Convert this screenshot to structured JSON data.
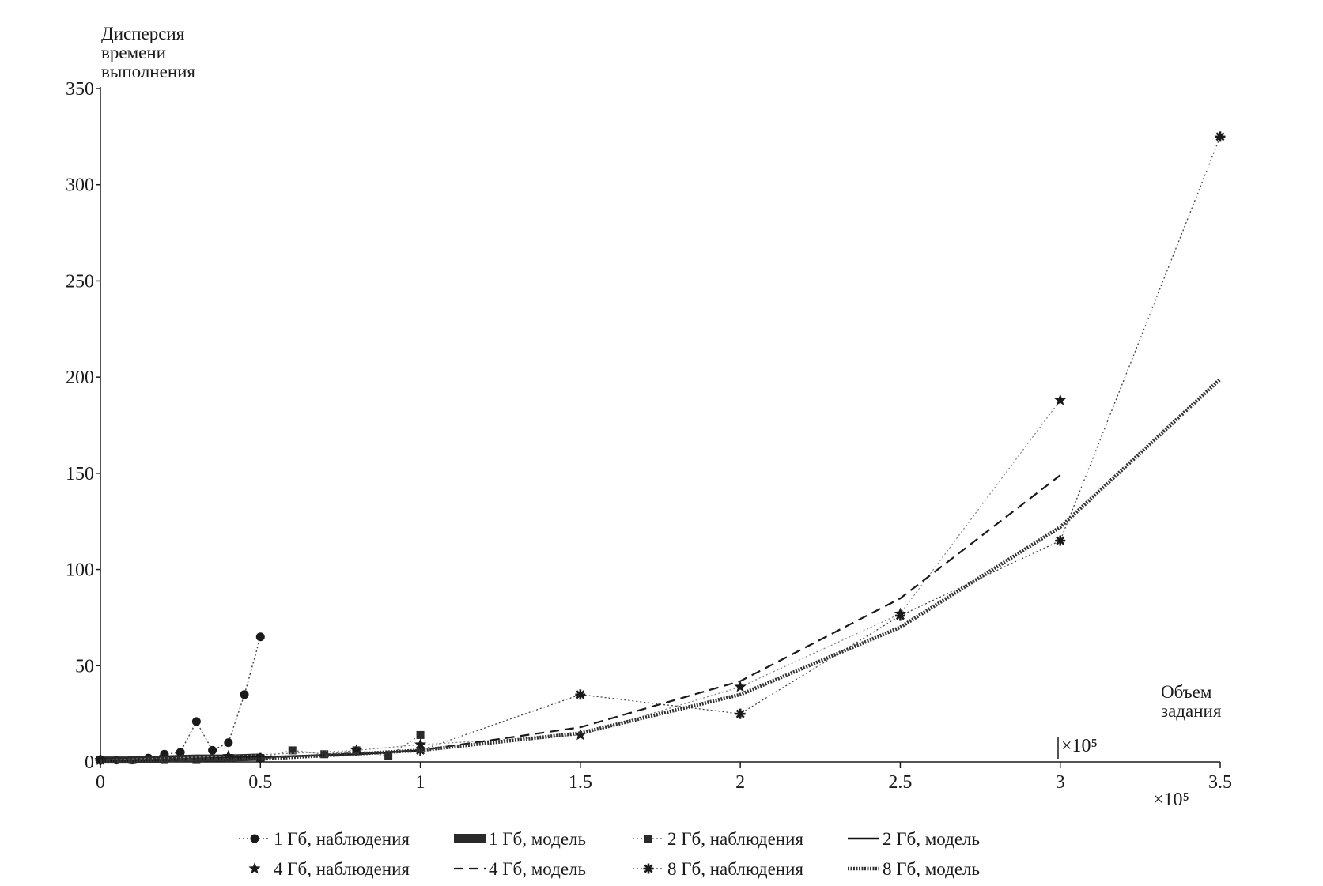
{
  "chart_data": {
    "type": "line",
    "ylabel_lines": [
      "Дисперсия",
      "времени",
      "выполнения"
    ],
    "xlabel_lines": [
      "Объем",
      "задания"
    ],
    "x_multiplier": "×10⁵",
    "x_ticks": [
      "0",
      "0.5",
      "1",
      "1.5",
      "2",
      "2.5",
      "3",
      "3.5"
    ],
    "y_ticks": [
      "0",
      "50",
      "100",
      "150",
      "200",
      "250",
      "300",
      "350"
    ],
    "xlim": [
      0,
      3.5
    ],
    "ylim": [
      0,
      350
    ],
    "x_scale_note": "x values in units of 10^5",
    "legend_position": "bottom",
    "series": [
      {
        "name": "1 Гб, наблюдения",
        "style": "dotted-circle",
        "x": [
          0,
          0.05,
          0.1,
          0.15,
          0.2,
          0.25,
          0.3,
          0.35,
          0.4,
          0.45,
          0.5
        ],
        "y": [
          1,
          1,
          1,
          2,
          4,
          5,
          21,
          6,
          10,
          35,
          65
        ]
      },
      {
        "name": "1 Гб, модель",
        "style": "thick-solid",
        "x": [
          0,
          0.1,
          0.2,
          0.3,
          0.4,
          0.5
        ],
        "y": [
          1,
          1,
          1.5,
          2,
          2,
          2.5
        ]
      },
      {
        "name": "2 Гб, наблюдения",
        "style": "dotted-square",
        "x": [
          0,
          0.1,
          0.2,
          0.3,
          0.4,
          0.5,
          0.6,
          0.7,
          0.8,
          0.9,
          1.0
        ],
        "y": [
          1,
          1,
          1,
          1,
          2,
          2,
          6,
          4,
          6,
          3,
          14
        ]
      },
      {
        "name": "2 Гб, модель",
        "style": "solid",
        "x": [
          0,
          0.2,
          0.4,
          0.6,
          0.8,
          1.0
        ],
        "y": [
          0.5,
          1,
          2,
          3,
          4,
          6
        ]
      },
      {
        "name": "4 Гб, наблюдения",
        "style": "dotted-star",
        "x": [
          0,
          0.4,
          0.8,
          1.0,
          1.5,
          2.0,
          2.5,
          3.0
        ],
        "y": [
          1,
          3,
          6,
          9,
          14,
          39,
          77,
          188
        ]
      },
      {
        "name": "4 Гб, модель",
        "style": "dashed",
        "x": [
          0,
          0.5,
          1.0,
          1.5,
          2.0,
          2.5,
          3.0
        ],
        "y": [
          0.5,
          2,
          6,
          18,
          42,
          85,
          149
        ]
      },
      {
        "name": "8 Гб, наблюдения",
        "style": "dotted-asterisk",
        "x": [
          0,
          0.5,
          1.0,
          1.5,
          2.0,
          2.5,
          3.0,
          3.5
        ],
        "y": [
          1,
          2,
          6,
          35,
          25,
          76,
          115,
          325
        ]
      },
      {
        "name": "8 Гб, модель",
        "style": "thick-dotted",
        "x": [
          0,
          0.5,
          1.0,
          1.5,
          2.0,
          2.5,
          3.0,
          3.5
        ],
        "y": [
          0.5,
          1.5,
          6,
          15,
          35,
          70,
          122,
          199
        ]
      }
    ]
  }
}
